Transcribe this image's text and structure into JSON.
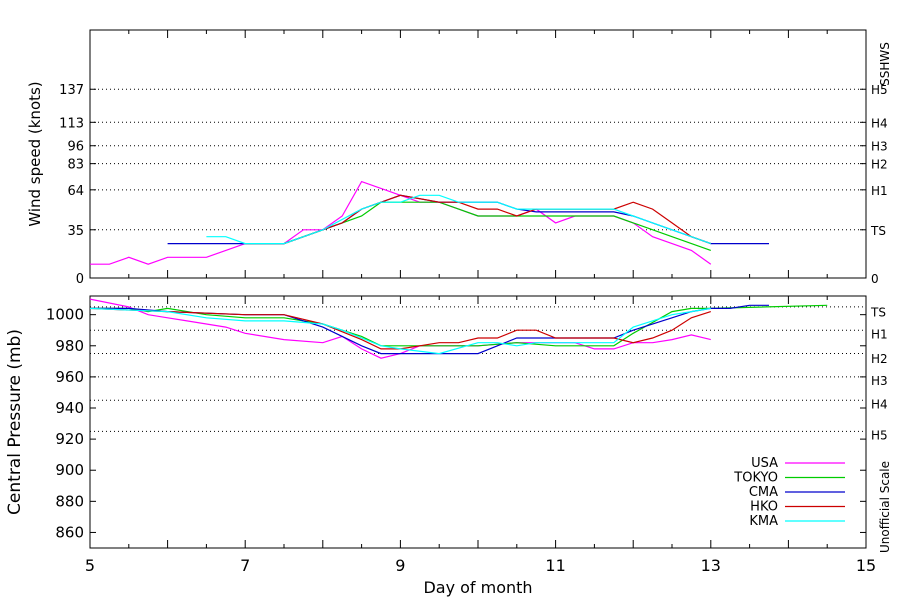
{
  "chart_data": [
    {
      "type": "line",
      "panel": "wind",
      "ylabel": "Wind speed (knots)",
      "xlim": [
        5,
        15
      ],
      "ylim": [
        0,
        180
      ],
      "yticks": [
        0,
        35,
        64,
        83,
        96,
        113,
        137
      ],
      "right_axis_title": "SSHWS",
      "right_labels": [
        {
          "value": 0,
          "label": "0"
        },
        {
          "value": 35,
          "label": "TS"
        },
        {
          "value": 64,
          "label": "H1"
        },
        {
          "value": 83,
          "label": "H2"
        },
        {
          "value": 96,
          "label": "H3"
        },
        {
          "value": 113,
          "label": "H4"
        },
        {
          "value": 137,
          "label": "H5"
        }
      ],
      "series": [
        {
          "name": "USA",
          "color": "#ff00ff",
          "points": [
            [
              5.0,
              10
            ],
            [
              5.25,
              10
            ],
            [
              5.5,
              15
            ],
            [
              5.75,
              10
            ],
            [
              6.0,
              15
            ],
            [
              6.5,
              15
            ],
            [
              6.75,
              20
            ],
            [
              7.0,
              25
            ],
            [
              7.5,
              25
            ],
            [
              7.75,
              35
            ],
            [
              8.0,
              35
            ],
            [
              8.25,
              45
            ],
            [
              8.5,
              70
            ],
            [
              8.75,
              65
            ],
            [
              9.0,
              60
            ],
            [
              9.25,
              55
            ],
            [
              9.5,
              55
            ],
            [
              9.75,
              50
            ],
            [
              10.0,
              45
            ],
            [
              10.25,
              45
            ],
            [
              10.5,
              45
            ],
            [
              10.75,
              50
            ],
            [
              11.0,
              40
            ],
            [
              11.25,
              45
            ],
            [
              11.5,
              45
            ],
            [
              11.75,
              45
            ],
            [
              12.0,
              40
            ],
            [
              12.25,
              30
            ],
            [
              12.5,
              25
            ],
            [
              12.75,
              20
            ],
            [
              13.0,
              10
            ]
          ]
        },
        {
          "name": "TOKYO",
          "color": "#00cc00",
          "points": [
            [
              7.0,
              25
            ],
            [
              7.5,
              25
            ],
            [
              8.25,
              40
            ],
            [
              8.5,
              45
            ],
            [
              8.75,
              55
            ],
            [
              9.0,
              55
            ],
            [
              9.5,
              55
            ],
            [
              9.75,
              50
            ],
            [
              10.0,
              45
            ],
            [
              10.5,
              45
            ],
            [
              10.75,
              45
            ],
            [
              11.0,
              45
            ],
            [
              11.5,
              45
            ],
            [
              11.75,
              45
            ],
            [
              12.0,
              40
            ],
            [
              12.5,
              30
            ],
            [
              12.75,
              25
            ],
            [
              13.0,
              20
            ]
          ]
        },
        {
          "name": "CMA",
          "color": "#0000cc",
          "points": [
            [
              6.0,
              25
            ],
            [
              6.75,
              25
            ],
            [
              7.0,
              25
            ],
            [
              7.5,
              25
            ],
            [
              8.0,
              35
            ],
            [
              8.25,
              40
            ],
            [
              8.5,
              50
            ],
            [
              8.75,
              55
            ],
            [
              9.0,
              60
            ],
            [
              9.5,
              55
            ],
            [
              10.0,
              55
            ],
            [
              10.25,
              55
            ],
            [
              10.5,
              50
            ],
            [
              10.75,
              48
            ],
            [
              11.0,
              48
            ],
            [
              11.5,
              48
            ],
            [
              11.75,
              48
            ],
            [
              12.0,
              45
            ],
            [
              12.25,
              40
            ],
            [
              12.75,
              30
            ],
            [
              13.0,
              25
            ],
            [
              13.75,
              25
            ]
          ]
        },
        {
          "name": "HKO",
          "color": "#cc0000",
          "points": [
            [
              7.0,
              25
            ],
            [
              7.5,
              25
            ],
            [
              8.0,
              35
            ],
            [
              8.25,
              40
            ],
            [
              8.5,
              50
            ],
            [
              8.75,
              55
            ],
            [
              9.0,
              60
            ],
            [
              9.5,
              55
            ],
            [
              9.75,
              55
            ],
            [
              10.0,
              50
            ],
            [
              10.25,
              50
            ],
            [
              10.5,
              45
            ],
            [
              10.75,
              50
            ],
            [
              11.0,
              50
            ],
            [
              11.5,
              50
            ],
            [
              11.75,
              50
            ],
            [
              12.0,
              55
            ],
            [
              12.25,
              50
            ],
            [
              12.5,
              40
            ],
            [
              12.75,
              30
            ],
            [
              13.0,
              25
            ]
          ]
        },
        {
          "name": "KMA",
          "color": "#00ffff",
          "points": [
            [
              6.5,
              30
            ],
            [
              6.75,
              30
            ],
            [
              7.0,
              25
            ],
            [
              7.5,
              25
            ],
            [
              8.0,
              35
            ],
            [
              8.5,
              50
            ],
            [
              8.75,
              55
            ],
            [
              9.0,
              55
            ],
            [
              9.25,
              60
            ],
            [
              9.5,
              60
            ],
            [
              9.75,
              55
            ],
            [
              10.0,
              55
            ],
            [
              10.25,
              55
            ],
            [
              10.5,
              50
            ],
            [
              11.0,
              50
            ],
            [
              11.5,
              50
            ],
            [
              11.75,
              50
            ],
            [
              12.0,
              45
            ],
            [
              12.5,
              35
            ],
            [
              12.75,
              30
            ],
            [
              13.0,
              25
            ]
          ]
        }
      ]
    },
    {
      "type": "line",
      "panel": "pressure",
      "ylabel": "Central Pressure (mb)",
      "xlabel": "Day of month",
      "xlim": [
        5,
        15
      ],
      "xticks": [
        5,
        7,
        9,
        11,
        13,
        15
      ],
      "ylim": [
        850,
        1012
      ],
      "yticks": [
        860,
        880,
        900,
        920,
        940,
        960,
        980,
        1000
      ],
      "gridlines": [
        1005,
        990,
        975,
        960,
        945,
        925
      ],
      "right_axis_title": "Unofficial Scale",
      "right_labels": [
        {
          "value": 1002,
          "label": "TS"
        },
        {
          "value": 988,
          "label": "H1"
        },
        {
          "value": 972,
          "label": "H2"
        },
        {
          "value": 958,
          "label": "H3"
        },
        {
          "value": 943,
          "label": "H4"
        },
        {
          "value": 923,
          "label": "H5"
        }
      ],
      "legend_position": "bottom-right",
      "series": [
        {
          "name": "USA",
          "color": "#ff00ff",
          "points": [
            [
              5.0,
              1010
            ],
            [
              5.5,
              1005
            ],
            [
              5.75,
              1000
            ],
            [
              6.0,
              998
            ],
            [
              6.25,
              996
            ],
            [
              6.5,
              994
            ],
            [
              6.75,
              992
            ],
            [
              7.0,
              988
            ],
            [
              7.5,
              984
            ],
            [
              8.0,
              982
            ],
            [
              8.25,
              986
            ],
            [
              8.5,
              978
            ],
            [
              8.75,
              972
            ],
            [
              9.0,
              975
            ],
            [
              9.25,
              980
            ],
            [
              9.5,
              980
            ],
            [
              10.0,
              980
            ],
            [
              10.5,
              982
            ],
            [
              11.0,
              982
            ],
            [
              11.25,
              982
            ],
            [
              11.5,
              978
            ],
            [
              11.75,
              978
            ],
            [
              12.0,
              982
            ],
            [
              12.25,
              982
            ],
            [
              12.5,
              984
            ],
            [
              12.75,
              987
            ],
            [
              13.0,
              984
            ]
          ]
        },
        {
          "name": "TOKYO",
          "color": "#00cc00",
          "points": [
            [
              5.0,
              1004
            ],
            [
              5.5,
              1004
            ],
            [
              5.75,
              1002
            ],
            [
              6.0,
              1004
            ],
            [
              6.5,
              1000
            ],
            [
              7.0,
              998
            ],
            [
              7.5,
              998
            ],
            [
              8.0,
              994
            ],
            [
              8.25,
              990
            ],
            [
              8.5,
              986
            ],
            [
              8.75,
              980
            ],
            [
              9.0,
              980
            ],
            [
              9.5,
              980
            ],
            [
              10.0,
              980
            ],
            [
              10.5,
              982
            ],
            [
              11.0,
              980
            ],
            [
              11.75,
              980
            ],
            [
              12.0,
              988
            ],
            [
              12.5,
              1002
            ],
            [
              12.75,
              1004
            ],
            [
              13.0,
              1004
            ],
            [
              14.5,
              1006
            ]
          ]
        },
        {
          "name": "CMA",
          "color": "#0000cc",
          "points": [
            [
              5.0,
              1004
            ],
            [
              5.5,
              1004
            ],
            [
              6.0,
              1002
            ],
            [
              7.0,
              1000
            ],
            [
              7.5,
              1000
            ],
            [
              8.0,
              992
            ],
            [
              8.25,
              986
            ],
            [
              8.5,
              980
            ],
            [
              8.75,
              975
            ],
            [
              9.0,
              975
            ],
            [
              10.0,
              975
            ],
            [
              10.25,
              980
            ],
            [
              10.5,
              985
            ],
            [
              11.0,
              985
            ],
            [
              11.75,
              985
            ],
            [
              12.0,
              990
            ],
            [
              12.5,
              998
            ],
            [
              12.75,
              1002
            ],
            [
              13.0,
              1004
            ],
            [
              13.25,
              1004
            ],
            [
              13.5,
              1006
            ],
            [
              13.75,
              1006
            ]
          ]
        },
        {
          "name": "HKO",
          "color": "#cc0000",
          "points": [
            [
              5.0,
              1004
            ],
            [
              6.0,
              1002
            ],
            [
              7.0,
              1000
            ],
            [
              7.5,
              1000
            ],
            [
              8.0,
              994
            ],
            [
              8.5,
              984
            ],
            [
              8.75,
              978
            ],
            [
              9.0,
              978
            ],
            [
              9.25,
              980
            ],
            [
              9.5,
              982
            ],
            [
              9.75,
              982
            ],
            [
              10.0,
              985
            ],
            [
              10.25,
              985
            ],
            [
              10.5,
              990
            ],
            [
              10.75,
              990
            ],
            [
              11.0,
              985
            ],
            [
              11.75,
              985
            ],
            [
              12.0,
              982
            ],
            [
              12.25,
              985
            ],
            [
              12.5,
              990
            ],
            [
              12.75,
              998
            ],
            [
              13.0,
              1002
            ]
          ]
        },
        {
          "name": "KMA",
          "color": "#00ffff",
          "points": [
            [
              5.0,
              1004
            ],
            [
              6.0,
              1002
            ],
            [
              6.5,
              998
            ],
            [
              7.0,
              996
            ],
            [
              7.5,
              996
            ],
            [
              8.0,
              994
            ],
            [
              8.25,
              990
            ],
            [
              8.5,
              985
            ],
            [
              8.75,
              980
            ],
            [
              9.0,
              978
            ],
            [
              9.5,
              975
            ],
            [
              10.0,
              982
            ],
            [
              10.25,
              982
            ],
            [
              10.5,
              980
            ],
            [
              10.75,
              982
            ],
            [
              11.0,
              982
            ],
            [
              11.75,
              982
            ],
            [
              12.0,
              992
            ],
            [
              12.5,
              1000
            ],
            [
              12.75,
              1002
            ],
            [
              13.0,
              1004
            ]
          ]
        }
      ]
    }
  ]
}
